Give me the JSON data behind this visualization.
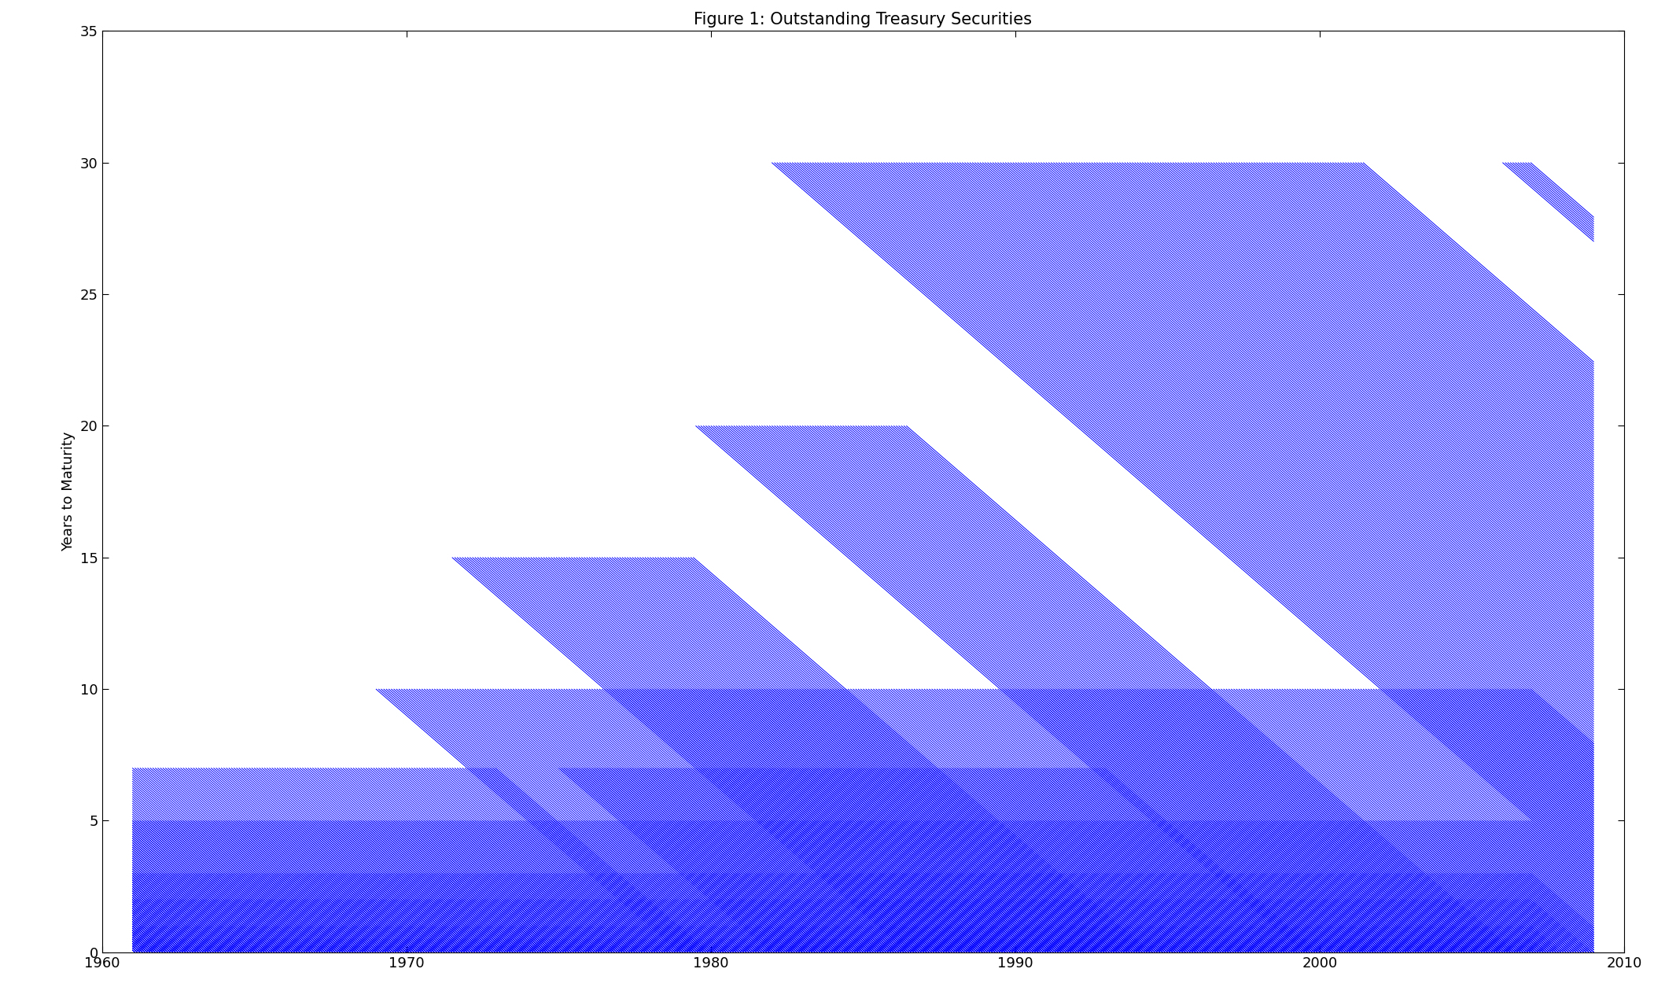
{
  "title": "Figure 1: Outstanding Treasury Securities",
  "ylabel": "Years to Maturity",
  "xlabel": "",
  "xlim": [
    1961,
    2007
  ],
  "ylim": [
    0,
    35
  ],
  "xticks": [
    1960,
    1970,
    1980,
    1990,
    2000,
    2010
  ],
  "yticks": [
    0,
    5,
    10,
    15,
    20,
    25,
    30,
    35
  ],
  "line_color": "#0000FF",
  "line_width": 0.7,
  "background_color": "#FFFFFF",
  "title_fontsize": 15,
  "label_fontsize": 13,
  "tick_labelsize": 13
}
